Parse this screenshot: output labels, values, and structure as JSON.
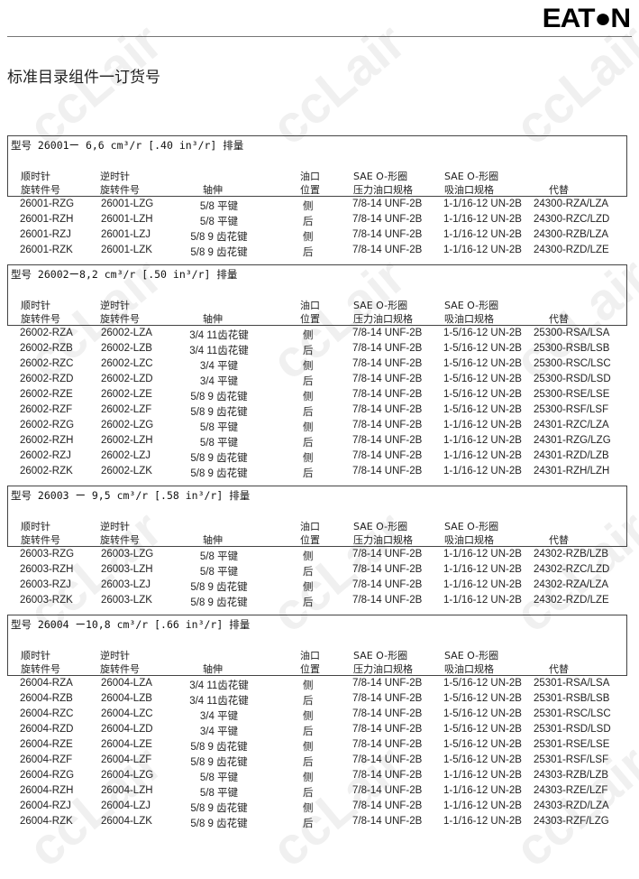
{
  "logo": "EATON",
  "page_title": "标准目录组件一订货号",
  "watermark": "ccLair",
  "headers": {
    "cw": [
      "顺时针",
      "旋转件号"
    ],
    "ccw": [
      "逆时针",
      "旋转件号"
    ],
    "shaft": "轴伸",
    "port": [
      "油口",
      "位置"
    ],
    "pressure": [
      "SAE O-形圈",
      "压力油口规格"
    ],
    "suction": [
      "SAE O-形圈",
      "吸油口规格"
    ],
    "replaces": "代替"
  },
  "sections": [
    {
      "title": "型号 26001ー 6,6 cm³/r [.40 in³/r] 排量",
      "rows": [
        [
          "26001-RZG",
          "26001-LZG",
          "5/8 平键",
          "侧",
          "7/8-14 UNF-2B",
          "1-1/16-12 UN-2B",
          "24300-RZA/LZA"
        ],
        [
          "26001-RZH",
          "26001-LZH",
          "5/8 平键",
          "后",
          "7/8-14 UNF-2B",
          "1-1/16-12 UN-2B",
          "24300-RZC/LZD"
        ],
        [
          "26001-RZJ",
          "26001-LZJ",
          "5/8 9 齿花键",
          "侧",
          "7/8-14 UNF-2B",
          "1-1/16-12 UN-2B",
          "24300-RZB/LZA"
        ],
        [
          "26001-RZK",
          "26001-LZK",
          "5/8 9 齿花键",
          "后",
          "7/8-14 UNF-2B",
          "1-1/16-12 UN-2B",
          "24300-RZD/LZE"
        ]
      ]
    },
    {
      "title": "型号 26002ー8,2 cm³/r [.50 in³/r] 排量",
      "rows": [
        [
          "26002-RZA",
          "26002-LZA",
          "3/4 11齿花键",
          "侧",
          "7/8-14 UNF-2B",
          "1-5/16-12 UN-2B",
          "25300-RSA/LSA"
        ],
        [
          "26002-RZB",
          "26002-LZB",
          "3/4 11齿花键",
          "后",
          "7/8-14 UNF-2B",
          "1-5/16-12 UN-2B",
          "25300-RSB/LSB"
        ],
        [
          "26002-RZC",
          "26002-LZC",
          "3/4 平键",
          "侧",
          "7/8-14 UNF-2B",
          "1-5/16-12 UN-2B",
          "25300-RSC/LSC"
        ],
        [
          "26002-RZD",
          "26002-LZD",
          "3/4 平键",
          "后",
          "7/8-14 UNF-2B",
          "1-5/16-12 UN-2B",
          "25300-RSD/LSD"
        ],
        [
          "26002-RZE",
          "26002-LZE",
          "5/8 9 齿花键",
          "侧",
          "7/8-14 UNF-2B",
          "1-5/16-12 UN-2B",
          "25300-RSE/LSE"
        ],
        [
          "26002-RZF",
          "26002-LZF",
          "5/8 9 齿花键",
          "后",
          "7/8-14 UNF-2B",
          "1-5/16-12 UN-2B",
          "25300-RSF/LSF"
        ],
        [
          "26002-RZG",
          "26002-LZG",
          "5/8 平键",
          "侧",
          "7/8-14 UNF-2B",
          "1-1/16-12 UN-2B",
          "24301-RZC/LZA"
        ],
        [
          "26002-RZH",
          "26002-LZH",
          "5/8 平键",
          "后",
          "7/8-14 UNF-2B",
          "1-1/16-12 UN-2B",
          "24301-RZG/LZG"
        ],
        [
          "26002-RZJ",
          "26002-LZJ",
          "5/8 9 齿花键",
          "侧",
          "7/8-14 UNF-2B",
          "1-1/16-12 UN-2B",
          "24301-RZD/LZB"
        ],
        [
          "26002-RZK",
          "26002-LZK",
          "5/8 9 齿花键",
          "后",
          "7/8-14 UNF-2B",
          "1-1/16-12 UN-2B",
          "24301-RZH/LZH"
        ]
      ]
    },
    {
      "title": "型号 26003 ー 9,5 cm³/r [.58 in³/r] 排量",
      "rows": [
        [
          "26003-RZG",
          "26003-LZG",
          "5/8 平键",
          "侧",
          "7/8-14 UNF-2B",
          "1-1/16-12 UN-2B",
          "24302-RZB/LZB"
        ],
        [
          "26003-RZH",
          "26003-LZH",
          "5/8 平键",
          "后",
          "7/8-14 UNF-2B",
          "1-1/16-12 UN-2B",
          "24302-RZC/LZD"
        ],
        [
          "26003-RZJ",
          "26003-LZJ",
          "5/8 9 齿花键",
          "侧",
          "7/8-14 UNF-2B",
          "1-1/16-12 UN-2B",
          "24302-RZA/LZA"
        ],
        [
          "26003-RZK",
          "26003-LZK",
          "5/8 9 齿花键",
          "后",
          "7/8-14 UNF-2B",
          "1-1/16-12 UN-2B",
          "24302-RZD/LZE"
        ]
      ]
    },
    {
      "title": "型号 26004 ー10,8 cm³/r [.66 in³/r] 排量",
      "rows": [
        [
          "26004-RZA",
          "26004-LZA",
          "3/4 11齿花键",
          "侧",
          "7/8-14 UNF-2B",
          "1-5/16-12 UN-2B",
          "25301-RSA/LSA"
        ],
        [
          "26004-RZB",
          "26004-LZB",
          "3/4 11齿花键",
          "后",
          "7/8-14 UNF-2B",
          "1-5/16-12 UN-2B",
          "25301-RSB/LSB"
        ],
        [
          "26004-RZC",
          "26004-LZC",
          "3/4 平键",
          "侧",
          "7/8-14 UNF-2B",
          "1-5/16-12 UN-2B",
          "25301-RSC/LSC"
        ],
        [
          "26004-RZD",
          "26004-LZD",
          "3/4 平键",
          "后",
          "7/8-14 UNF-2B",
          "1-5/16-12 UN-2B",
          "25301-RSD/LSD"
        ],
        [
          "26004-RZE",
          "26004-LZE",
          "5/8 9 齿花键",
          "侧",
          "7/8-14 UNF-2B",
          "1-5/16-12 UN-2B",
          "25301-RSE/LSE"
        ],
        [
          "26004-RZF",
          "26004-LZF",
          "5/8 9 齿花键",
          "后",
          "7/8-14 UNF-2B",
          "1-5/16-12 UN-2B",
          "25301-RSF/LSF"
        ],
        [
          "26004-RZG",
          "26004-LZG",
          "5/8 平键",
          "侧",
          "7/8-14 UNF-2B",
          "1-1/16-12 UN-2B",
          "24303-RZB/LZB"
        ],
        [
          "26004-RZH",
          "26004-LZH",
          "5/8 平键",
          "后",
          "7/8-14 UNF-2B",
          "1-1/16-12 UN-2B",
          "24303-RZE/LZF"
        ],
        [
          "26004-RZJ",
          "26004-LZJ",
          "5/8 9 齿花键",
          "侧",
          "7/8-14 UNF-2B",
          "1-1/16-12 UN-2B",
          "24303-RZD/LZA"
        ],
        [
          "26004-RZK",
          "26004-LZK",
          "5/8 9 齿花键",
          "后",
          "7/8-14 UNF-2B",
          "1-1/16-12 UN-2B",
          "24303-RZF/LZG"
        ]
      ]
    }
  ]
}
